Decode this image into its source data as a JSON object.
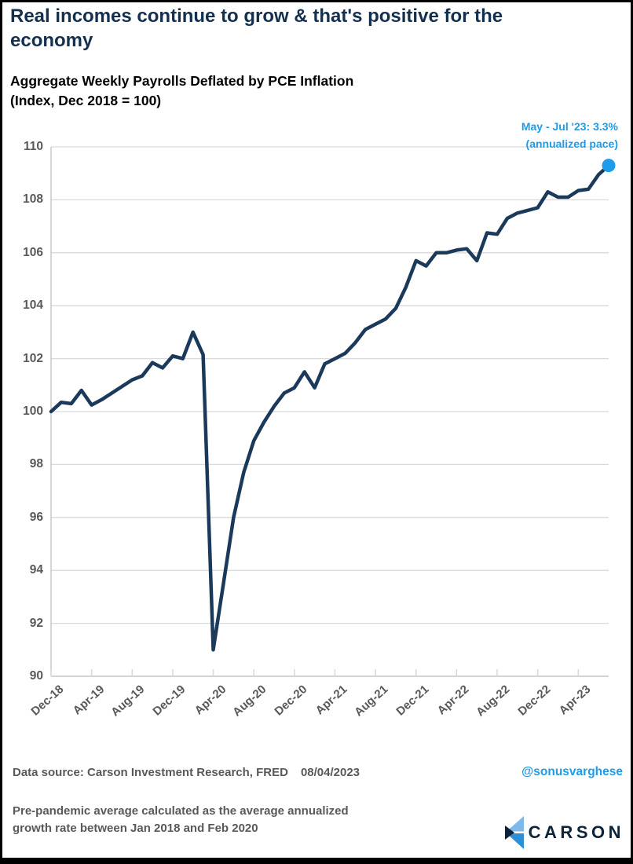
{
  "title": "Real incomes continue to grow & that's positive for the economy",
  "subtitle": {
    "line1": "Aggregate Weekly Payrolls Deflated by PCE Inflation",
    "line2": "(Index, Dec 2018 = 100)"
  },
  "annotation": {
    "line1": "May - Jul '23: 3.3%",
    "line2": "(annualized pace)"
  },
  "footer": {
    "data_source": "Data source: Carson Investment Research, FRED",
    "date": "08/04/2023",
    "handle": "@sonusvarghese",
    "note_line1": "Pre-pandemic average calculated as the average annualized",
    "note_line2": "growth rate between Jan 2018 and Feb 2020",
    "brand": "CARSON"
  },
  "colors": {
    "title_navy": "#14304e",
    "line_navy": "#1b3a5b",
    "accent_blue": "#1e9be9",
    "text_gray": "#595959",
    "gridline": "#d9d9d9",
    "axis": "#bfbfbf",
    "logo_navy": "#0d2339",
    "logo_light_blue": "#7fb9ea",
    "logo_mid_blue": "#2e8fd6"
  },
  "chart_data": {
    "type": "line",
    "title": "Aggregate Weekly Payrolls Deflated by PCE Inflation (Index, Dec 2018 = 100)",
    "xlabel": "",
    "ylabel": "",
    "ylim": [
      90,
      110
    ],
    "yticks": [
      90,
      92,
      94,
      96,
      98,
      100,
      102,
      104,
      106,
      108,
      110
    ],
    "grid": "horizontal",
    "x_tick_rotation_deg": -42,
    "legend": "none",
    "x": [
      "Dec-18",
      "Jan-19",
      "Feb-19",
      "Mar-19",
      "Apr-19",
      "May-19",
      "Jun-19",
      "Jul-19",
      "Aug-19",
      "Sep-19",
      "Oct-19",
      "Nov-19",
      "Dec-19",
      "Jan-20",
      "Feb-20",
      "Mar-20",
      "Apr-20",
      "May-20",
      "Jun-20",
      "Jul-20",
      "Aug-20",
      "Sep-20",
      "Oct-20",
      "Nov-20",
      "Dec-20",
      "Jan-21",
      "Feb-21",
      "Mar-21",
      "Apr-21",
      "May-21",
      "Jun-21",
      "Jul-21",
      "Aug-21",
      "Sep-21",
      "Oct-21",
      "Nov-21",
      "Dec-21",
      "Jan-22",
      "Feb-22",
      "Mar-22",
      "Apr-22",
      "May-22",
      "Jun-22",
      "Jul-22",
      "Aug-22",
      "Sep-22",
      "Oct-22",
      "Nov-22",
      "Dec-22",
      "Jan-23",
      "Feb-23",
      "Mar-23",
      "Apr-23",
      "May-23",
      "Jun-23",
      "Jul-23"
    ],
    "values": [
      100.0,
      100.35,
      100.3,
      100.8,
      100.25,
      100.45,
      100.7,
      100.95,
      101.2,
      101.35,
      101.85,
      101.65,
      102.1,
      102.0,
      103.0,
      102.15,
      91.0,
      93.5,
      96.0,
      97.7,
      98.9,
      99.6,
      100.2,
      100.7,
      100.9,
      101.5,
      100.9,
      101.8,
      102.0,
      102.2,
      102.6,
      103.1,
      103.3,
      103.5,
      103.9,
      104.7,
      105.7,
      105.5,
      106.0,
      106.0,
      106.1,
      106.15,
      105.7,
      106.75,
      106.7,
      107.3,
      107.5,
      107.6,
      107.7,
      108.3,
      108.1,
      108.1,
      108.35,
      108.4,
      108.95,
      109.3
    ],
    "x_ticks": [
      {
        "index": 0,
        "label": "Dec-18"
      },
      {
        "index": 4,
        "label": "Apr-19"
      },
      {
        "index": 8,
        "label": "Aug-19"
      },
      {
        "index": 12,
        "label": "Dec-19"
      },
      {
        "index": 16,
        "label": "Apr-20"
      },
      {
        "index": 20,
        "label": "Aug-20"
      },
      {
        "index": 24,
        "label": "Dec-20"
      },
      {
        "index": 28,
        "label": "Apr-21"
      },
      {
        "index": 32,
        "label": "Aug-21"
      },
      {
        "index": 36,
        "label": "Dec-21"
      },
      {
        "index": 40,
        "label": "Apr-22"
      },
      {
        "index": 44,
        "label": "Aug-22"
      },
      {
        "index": 48,
        "label": "Dec-22"
      },
      {
        "index": 52,
        "label": "Apr-23"
      }
    ],
    "end_marker": {
      "x": "Jul-23",
      "value": 109.3
    }
  }
}
